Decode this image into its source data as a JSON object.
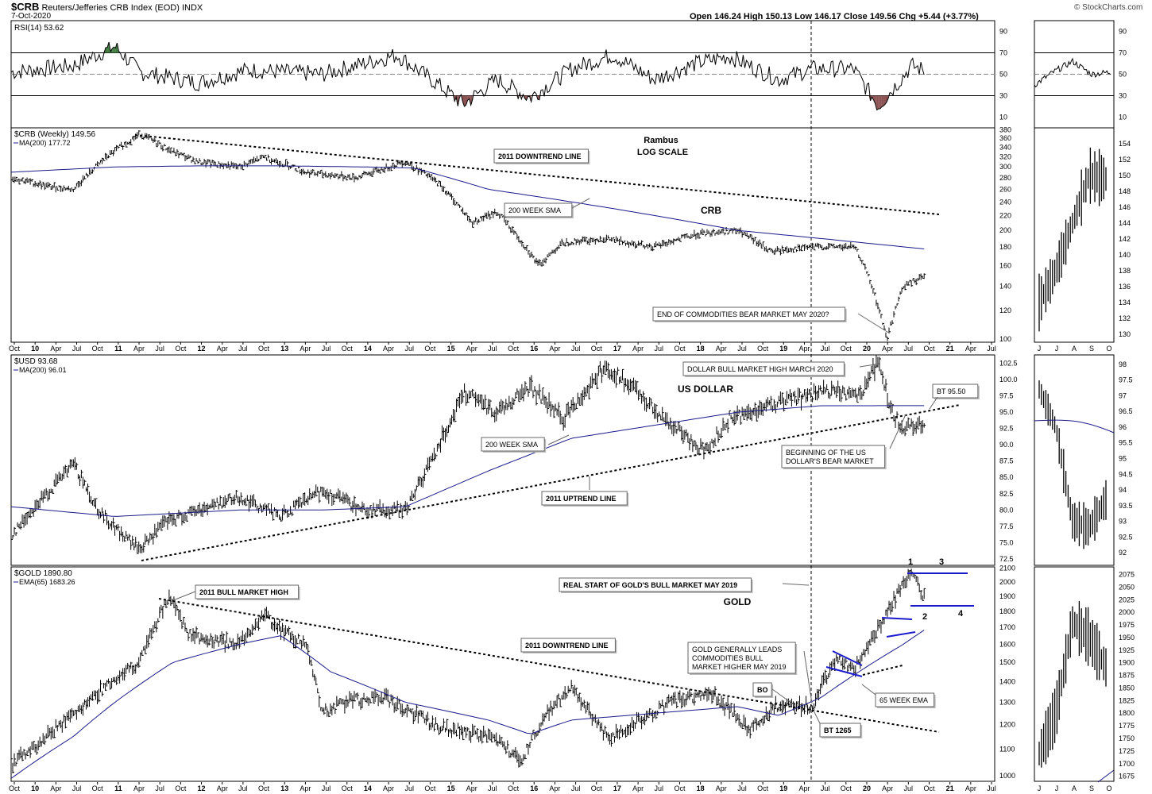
{
  "header": {
    "symbol": "$CRB",
    "name": "Reuters/Jefferies CRB Index (EOD)",
    "exchange": "INDX",
    "date": "7-Oct-2020",
    "quote": "Open 146.24  High 150.13  Low 146.17  Close 149.56  Chg +5.44 (+3.77%)",
    "logo": "© StockCharts.com"
  },
  "colors": {
    "price": "#000000",
    "ma": "#1a1a8c",
    "annotation_blue": "#1a1acc",
    "rsi_overbought_fill": "#3f7a3f",
    "rsi_oversold_fill": "#8b5050",
    "grid": "#cfcfcf"
  },
  "x_axis": {
    "labels": [
      "Oct",
      "10",
      "Apr",
      "Jul",
      "Oct",
      "11",
      "Apr",
      "Jul",
      "Oct",
      "12",
      "Apr",
      "Jul",
      "Oct",
      "13",
      "Apr",
      "Jul",
      "Oct",
      "14",
      "Apr",
      "Jul",
      "Oct",
      "15",
      "Apr",
      "Jul",
      "Oct",
      "16",
      "Apr",
      "Jul",
      "Oct",
      "17",
      "Apr",
      "Jul",
      "Oct",
      "18",
      "Apr",
      "Jul",
      "Oct",
      "19",
      "Apr",
      "Jul",
      "Oct",
      "20",
      "Apr",
      "Jul",
      "Oct",
      "21",
      "Apr",
      "Jul"
    ],
    "daily_labels": [
      "J",
      "J",
      "A",
      "S",
      "O"
    ],
    "vertical_marker": "2019-05"
  },
  "chart_data": [
    {
      "type": "line",
      "panel": "rsi",
      "title": "RSI(14) 53.62",
      "y_ticks": [
        10,
        30,
        50,
        70,
        90
      ],
      "ylim": [
        0,
        100
      ],
      "levels": [
        30,
        50,
        70
      ],
      "x": [
        2009.75,
        2010.5,
        2011.0,
        2011.3,
        2012.0,
        2012.6,
        2013.5,
        2014.4,
        2014.9,
        2015.2,
        2015.6,
        2016.0,
        2016.5,
        2017.0,
        2017.5,
        2018.0,
        2018.4,
        2019.0,
        2019.4,
        2019.9,
        2020.2,
        2020.6,
        2020.75
      ],
      "values": [
        52,
        58,
        76,
        52,
        42,
        54,
        50,
        68,
        40,
        22,
        45,
        28,
        55,
        68,
        45,
        60,
        67,
        45,
        55,
        55,
        20,
        58,
        53.62
      ]
    },
    {
      "type": "line",
      "panel": "crb",
      "title": "$CRB (Weekly) 149.56",
      "legend": "MA(200) 177.72",
      "scale": "log",
      "y_ticks": [
        100,
        120,
        140,
        160,
        180,
        200,
        220,
        240,
        260,
        280,
        300,
        320,
        340,
        360,
        380
      ],
      "ylim": [
        98,
        385
      ],
      "x": [
        2009.75,
        2010.2,
        2010.5,
        2010.9,
        2011.3,
        2011.7,
        2012.0,
        2012.5,
        2012.8,
        2013.3,
        2013.9,
        2014.5,
        2014.9,
        2015.3,
        2015.6,
        2016.1,
        2016.4,
        2016.9,
        2017.5,
        2018.0,
        2018.5,
        2018.9,
        2019.4,
        2019.9,
        2020.0,
        2020.3,
        2020.5,
        2020.75
      ],
      "values": [
        280,
        265,
        260,
        320,
        370,
        330,
        310,
        300,
        320,
        290,
        280,
        310,
        270,
        210,
        225,
        160,
        185,
        190,
        180,
        195,
        200,
        175,
        180,
        180,
        165,
        100,
        140,
        149.56
      ],
      "ma200": {
        "x": [
          2009.75,
          2011.0,
          2012.0,
          2013.0,
          2014.0,
          2014.6,
          2015.5,
          2016.5,
          2017.5,
          2018.5,
          2019.3,
          2020.0,
          2020.75
        ],
        "values": [
          290,
          300,
          302,
          302,
          300,
          298,
          260,
          240,
          220,
          200,
          192,
          185,
          177.72
        ]
      },
      "annotations": [
        "Rambus",
        "LOG SCALE",
        "2011 DOWNTREND LINE",
        "200  WEEK SMA",
        "CRB",
        "END OF COMMODITIES BEAR  MARKET MAY 2020?"
      ]
    },
    {
      "type": "line",
      "panel": "usd",
      "title": "$USD 93.68",
      "legend": "MA(200) 96.01",
      "y_ticks": [
        72.5,
        75.0,
        77.5,
        80.0,
        82.5,
        85.0,
        87.5,
        90.0,
        92.5,
        95.0,
        97.5,
        100.0,
        102.5
      ],
      "ylim": [
        71.5,
        103.8
      ],
      "x": [
        2009.75,
        2010.0,
        2010.5,
        2010.8,
        2011.1,
        2011.3,
        2011.6,
        2012.0,
        2012.5,
        2013.0,
        2013.5,
        2014.0,
        2014.5,
        2014.75,
        2015.2,
        2015.6,
        2016.0,
        2016.4,
        2016.9,
        2017.3,
        2017.7,
        2018.1,
        2018.4,
        2019.0,
        2019.5,
        2020.0,
        2020.2,
        2020.35,
        2020.5,
        2020.75
      ],
      "values": [
        76,
        80,
        87,
        80,
        76,
        74,
        78,
        80,
        82,
        79,
        83,
        80,
        80,
        86,
        98,
        95,
        99,
        94,
        102,
        98,
        93,
        89,
        94,
        96.5,
        98,
        98,
        103,
        95,
        92.5,
        93.68
      ],
      "ma200": {
        "x": [
          2009.75,
          2011.0,
          2012.5,
          2013.5,
          2014.5,
          2015.5,
          2016.5,
          2017.5,
          2018.5,
          2019.5,
          2020.75
        ],
        "values": [
          80.5,
          79,
          80,
          80,
          80.5,
          86,
          91,
          93,
          95,
          96,
          96.01
        ]
      },
      "annotations": [
        "US DOLLAR",
        "DOLLAR BULL MARKET HIGH MARCH 2020",
        "BT 95.50",
        "200 WEEK SMA",
        "2011 UPTREND LINE",
        "BEGINNING OF THE US",
        "DOLLAR'S  BEAR MARKET"
      ]
    },
    {
      "type": "line",
      "panel": "gold",
      "title": "$GOLD 1890.80",
      "legend": "EMA(65) 1683.26",
      "scale": "log",
      "y_ticks": [
        1000,
        1100,
        1200,
        1300,
        1400,
        1500,
        1600,
        1700,
        1800,
        1900,
        2000,
        2100
      ],
      "ylim": [
        980,
        2110
      ],
      "x": [
        2009.75,
        2010.0,
        2010.5,
        2010.9,
        2011.3,
        2011.65,
        2011.9,
        2012.5,
        2012.8,
        2013.0,
        2013.3,
        2013.5,
        2013.75,
        2014.2,
        2014.9,
        2015.5,
        2015.9,
        2016.2,
        2016.5,
        2016.95,
        2017.7,
        2018.2,
        2018.65,
        2019.0,
        2019.4,
        2019.7,
        2019.9,
        2020.2,
        2020.6,
        2020.75
      ],
      "values": [
        1040,
        1100,
        1250,
        1380,
        1500,
        1900,
        1650,
        1600,
        1780,
        1680,
        1600,
        1250,
        1300,
        1330,
        1190,
        1150,
        1060,
        1250,
        1370,
        1140,
        1300,
        1340,
        1180,
        1290,
        1280,
        1530,
        1460,
        1700,
        2070,
        1890.8
      ],
      "ema65": {
        "x": [
          2009.75,
          2010.5,
          2011.0,
          2011.7,
          2012.5,
          2013.0,
          2013.6,
          2014.5,
          2015.5,
          2016.0,
          2016.5,
          2017.5,
          2018.5,
          2019.0,
          2019.5,
          2020.0,
          2020.5,
          2020.75
        ],
        "values": [
          990,
          1150,
          1300,
          1500,
          1600,
          1650,
          1450,
          1300,
          1220,
          1160,
          1220,
          1250,
          1280,
          1240,
          1320,
          1460,
          1600,
          1683.26
        ]
      },
      "annotations": [
        "2011 BULL MARKET HIGH",
        "2011 DOWNTREND LINE",
        "REAL START OF GOLD'S BULL MARKET MAY 2019",
        "GOLD",
        "GOLD GENERALLY LEADS",
        "COMMODITIES BULL",
        "MARKET HIGHER MAY 2019",
        "BO",
        "BT 1265",
        "65 WEEK EMA",
        "1",
        "2",
        "3",
        "4"
      ]
    },
    {
      "type": "line",
      "panel": "rsi_daily",
      "y_ticks": [
        10,
        30,
        50,
        70,
        90
      ],
      "ylim": [
        0,
        100
      ],
      "x": [
        "J",
        "J",
        "A",
        "S",
        "O"
      ],
      "values": [
        40,
        52,
        62,
        50,
        52
      ]
    },
    {
      "type": "bar",
      "panel": "crb_daily",
      "y_ticks": [
        130,
        132,
        134,
        136,
        138,
        140,
        142,
        144,
        146,
        148,
        150,
        152,
        154
      ],
      "ylim": [
        129,
        156
      ],
      "x": [
        "J",
        "J",
        "A",
        "S",
        "O"
      ],
      "values": [
        134,
        138,
        144,
        150,
        149.56
      ]
    },
    {
      "type": "bar",
      "panel": "usd_daily",
      "y_ticks": [
        92.0,
        92.5,
        93.0,
        93.5,
        94.0,
        94.5,
        95.0,
        95.5,
        96.0,
        96.5,
        97.0,
        97.5,
        98.0
      ],
      "ylim": [
        91.6,
        98.3
      ],
      "x": [
        "J",
        "J",
        "A",
        "S",
        "O"
      ],
      "values": [
        97.2,
        96.0,
        93.0,
        92.8,
        93.68
      ]
    },
    {
      "type": "bar",
      "panel": "gold_daily",
      "y_ticks": [
        1675,
        1700,
        1725,
        1750,
        1775,
        1800,
        1825,
        1850,
        1875,
        1900,
        1925,
        1950,
        1975,
        2000,
        2025,
        2050,
        2075
      ],
      "ylim": [
        1665,
        2090
      ],
      "x": [
        "J",
        "J",
        "A",
        "S",
        "O"
      ],
      "values": [
        1720,
        1800,
        1980,
        1950,
        1890.8
      ]
    }
  ]
}
